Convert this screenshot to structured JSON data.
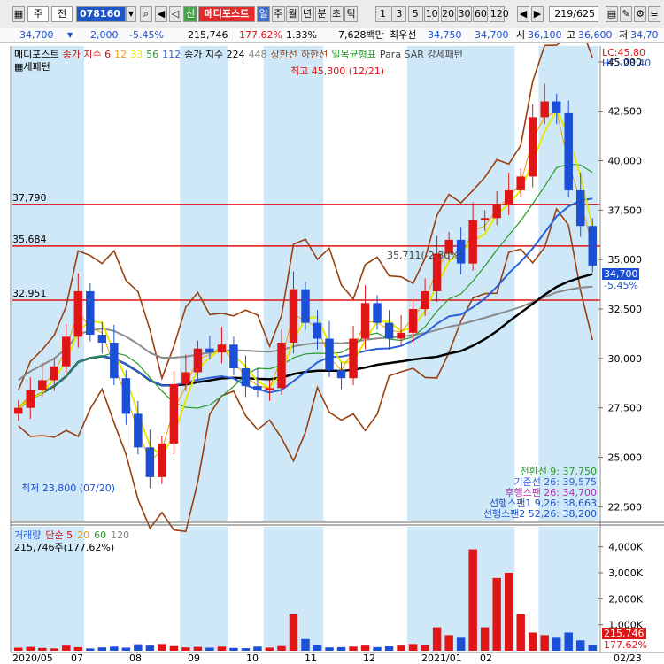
{
  "toolbar": {
    "type_label": "주",
    "prev_label": "전",
    "stock_code": "078160",
    "sin_label": "신",
    "stock_name": "메디포스트",
    "period_tabs": [
      "일",
      "주",
      "월",
      "년",
      "분",
      "초",
      "틱"
    ],
    "active_period": "일",
    "interval_buttons": [
      "1",
      "3",
      "5",
      "10",
      "20",
      "30",
      "60",
      "120"
    ],
    "page_counter": "219/625"
  },
  "quote": {
    "price": "34,700",
    "change": "2,000",
    "change_pct": "-5.45%",
    "volume": "215,746",
    "volume_ratio": "177.62%",
    "turnover": "1.33%",
    "amount": "7,628백만",
    "best_bid_label": "최우선",
    "best_ask": "34,750",
    "best_bid": "34,700",
    "open_label": "시",
    "open": "36,100",
    "high_label": "고",
    "high": "36,600",
    "low_label": "저",
    "low": "34,70"
  },
  "legend": {
    "items": [
      {
        "text": "메디포스트",
        "color": "#000000"
      },
      {
        "text": "종가 지수 6",
        "color": "#d01010"
      },
      {
        "text": "12",
        "color": "#e8a000"
      },
      {
        "text": "33",
        "color": "#e8e800"
      },
      {
        "text": "56",
        "color": "#2a9a2a"
      },
      {
        "text": "112",
        "color": "#2a60d8"
      },
      {
        "text": "종가 지수 224",
        "color": "#000000"
      },
      {
        "text": "448",
        "color": "#888888"
      },
      {
        "text": "상한선",
        "color": "#9a4010"
      },
      {
        "text": "하한선",
        "color": "#9a4010"
      },
      {
        "text": "일목균형표",
        "color": "#2a9a2a"
      },
      {
        "text": "Para SAR 강세패턴",
        "color": "#444444"
      }
    ],
    "lc": "LC:45.80",
    "hc": "HC:-23.40"
  },
  "annotations": {
    "high_marker": "최고 45,300 (12/21)",
    "low_marker": "최저 23,800 (07/20)",
    "marker_line": "35,711(-2.80%)",
    "current_price_tag": "34,700",
    "current_pct_tag": "-5.45%",
    "volume_tag": "215,746",
    "volume_pct_tag": "177.62%"
  },
  "ichimoku": [
    {
      "text": "전환선 9: 37,750",
      "color": "#2a9a2a"
    },
    {
      "text": "기준선 26: 39,575",
      "color": "#2a60d8"
    },
    {
      "text": "후행스팬 26: 34,700",
      "color": "#b030b0"
    },
    {
      "text": "선행스팬1 9,26: 38,663",
      "color": "#2050c0"
    },
    {
      "text": "선행스팬2 52,26: 38,200",
      "color": "#2050c0"
    }
  ],
  "volume_legend": {
    "items": [
      {
        "text": "거래량",
        "color": "#2a60d8"
      },
      {
        "text": "단순 5",
        "color": "#d01010"
      },
      {
        "text": "20",
        "color": "#e8a000"
      },
      {
        "text": "60",
        "color": "#2a9a2a"
      },
      {
        "text": "120",
        "color": "#888888"
      }
    ],
    "current": "215,746주(177.62%)"
  },
  "date_labels": [
    "2020/05",
    "07",
    "08",
    "09",
    "10",
    "11",
    "12",
    "2021/01",
    "02",
    "02/23"
  ],
  "colors": {
    "up": "#e01515",
    "down": "#1a4fd6",
    "band": "#cfe8f8",
    "hline": "#e01010"
  },
  "chart_data": {
    "type": "candlestick",
    "title": "메디포스트",
    "y_ticks": [
      "45,000",
      "42,500",
      "40,000",
      "37,500",
      "35,000",
      "32,500",
      "30,000",
      "27,500",
      "25,000",
      "22,500"
    ],
    "ylim": [
      21800,
      45800
    ],
    "horizontal_lines": [
      {
        "label": "37,790",
        "value": 37790
      },
      {
        "label": "35,684",
        "value": 35684
      },
      {
        "label": "32,951",
        "value": 32951
      }
    ],
    "high": {
      "value": 45300,
      "date": "12/21"
    },
    "low": {
      "value": 23800,
      "date": "07/20"
    },
    "close_approx": [
      27500,
      28400,
      28900,
      29600,
      31100,
      33400,
      31200,
      30800,
      29000,
      27200,
      25500,
      24000,
      25700,
      28700,
      29300,
      30500,
      30300,
      30700,
      29500,
      28600,
      28400,
      28500,
      30800,
      33500,
      31800,
      31000,
      29400,
      29000,
      31000,
      32800,
      31800,
      31000,
      31300,
      32500,
      33400,
      35300,
      36000,
      34800,
      37000,
      37100,
      37800,
      38500,
      39200,
      42200,
      43000,
      42400,
      38500,
      36700,
      34700
    ],
    "vol_ticks": [
      "4,000K",
      "3,000K",
      "2,000K",
      "1,000K"
    ],
    "vol_ylim": [
      0,
      4600
    ],
    "volume_k_approx": [
      120,
      150,
      110,
      90,
      200,
      140,
      90,
      130,
      160,
      120,
      250,
      200,
      260,
      180,
      130,
      150,
      120,
      160,
      110,
      100,
      160,
      120,
      180,
      1400,
      450,
      220,
      130,
      140,
      160,
      200,
      140,
      170,
      200,
      260,
      220,
      900,
      600,
      500,
      3900,
      900,
      2800,
      3000,
      1400,
      700,
      600,
      500,
      700,
      400,
      216
    ]
  }
}
